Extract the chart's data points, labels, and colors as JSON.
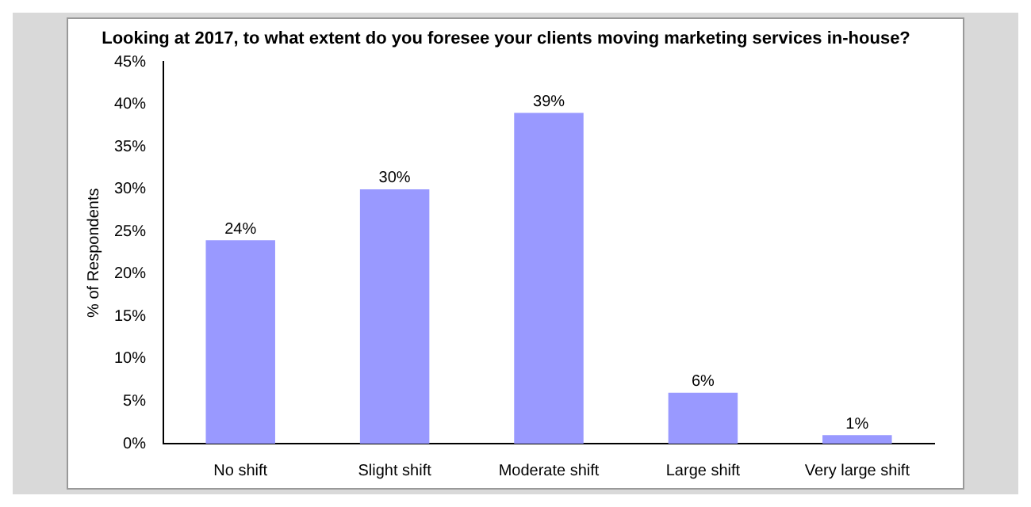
{
  "chart_data": {
    "type": "bar",
    "title": "Looking at 2017, to what extent do you foresee your clients moving marketing services in-house?",
    "ylabel": "% of Respondents",
    "categories": [
      "No shift",
      "Slight shift",
      "Moderate shift",
      "Large shift",
      "Very large shift"
    ],
    "values": [
      24,
      30,
      39,
      6,
      1
    ],
    "value_labels": [
      "24%",
      "30%",
      "39%",
      "6%",
      "1%"
    ],
    "color": "#9999ff",
    "ylim": [
      0,
      45
    ],
    "yticks": [
      {
        "value": 0,
        "label": "0%"
      },
      {
        "value": 5,
        "label": "5%"
      },
      {
        "value": 10,
        "label": "10%"
      },
      {
        "value": 15,
        "label": "15%"
      },
      {
        "value": 20,
        "label": "20%"
      },
      {
        "value": 25,
        "label": "25%"
      },
      {
        "value": 30,
        "label": "30%"
      },
      {
        "value": 35,
        "label": "35%"
      },
      {
        "value": 40,
        "label": "40%"
      },
      {
        "value": 45,
        "label": "45%"
      }
    ],
    "grid": false,
    "legend": false
  }
}
